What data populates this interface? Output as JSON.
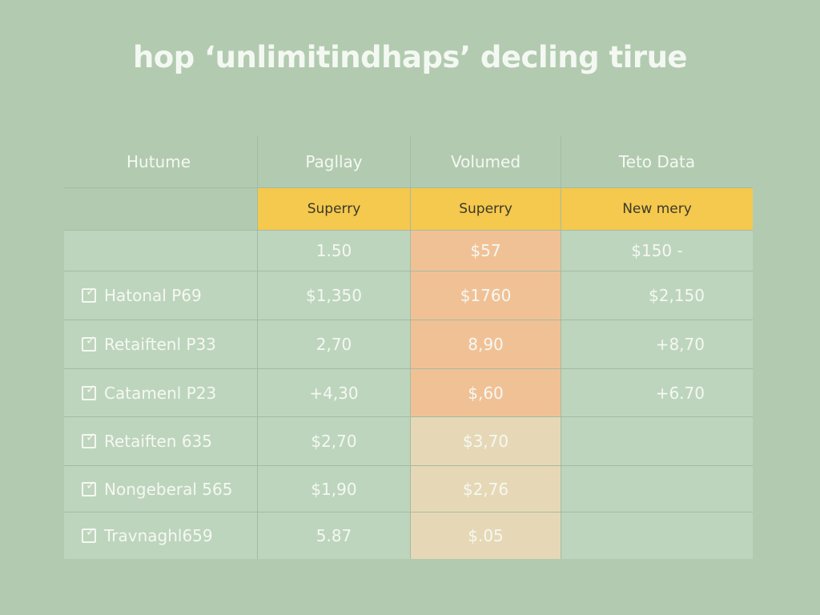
{
  "title": "hop ‘unlimitindhaps’ decling tirue",
  "headers": [
    "Hutume",
    "Pagllay",
    "Volumed",
    "Teto Data"
  ],
  "subheaders": [
    "",
    "Superry",
    "Superry",
    "New mery"
  ],
  "rows": [
    {
      "label": "",
      "checked": false,
      "values": [
        "1.50",
        "$57",
        "$150 -"
      ]
    },
    {
      "label": "Hatonal P69",
      "checked": true,
      "values": [
        "$1,350",
        "$1760",
        "$2,150"
      ]
    },
    {
      "label": "Retaiftenl P33",
      "checked": true,
      "values": [
        "2,70",
        "8,90",
        "+8,70"
      ]
    },
    {
      "label": "Catamenl P23",
      "checked": true,
      "values": [
        "+4,30",
        "$,60",
        "+6.70"
      ]
    },
    {
      "label": "Retaiften 635",
      "checked": true,
      "values": [
        "$2,70",
        "$3,70",
        ""
      ]
    },
    {
      "label": "Nongeberal 565",
      "checked": true,
      "values": [
        "$1,90",
        "$2,76",
        ""
      ]
    },
    {
      "label": "Travnaghl659",
      "checked": true,
      "values": [
        "5.87",
        "$.05",
        ""
      ]
    }
  ],
  "colors": {
    "background": "#b2cbb0",
    "subheader": "#f5c84e",
    "highlight": "#f1c196",
    "highlight_light": "#e6d8b6",
    "row": "#bdd5bd"
  }
}
